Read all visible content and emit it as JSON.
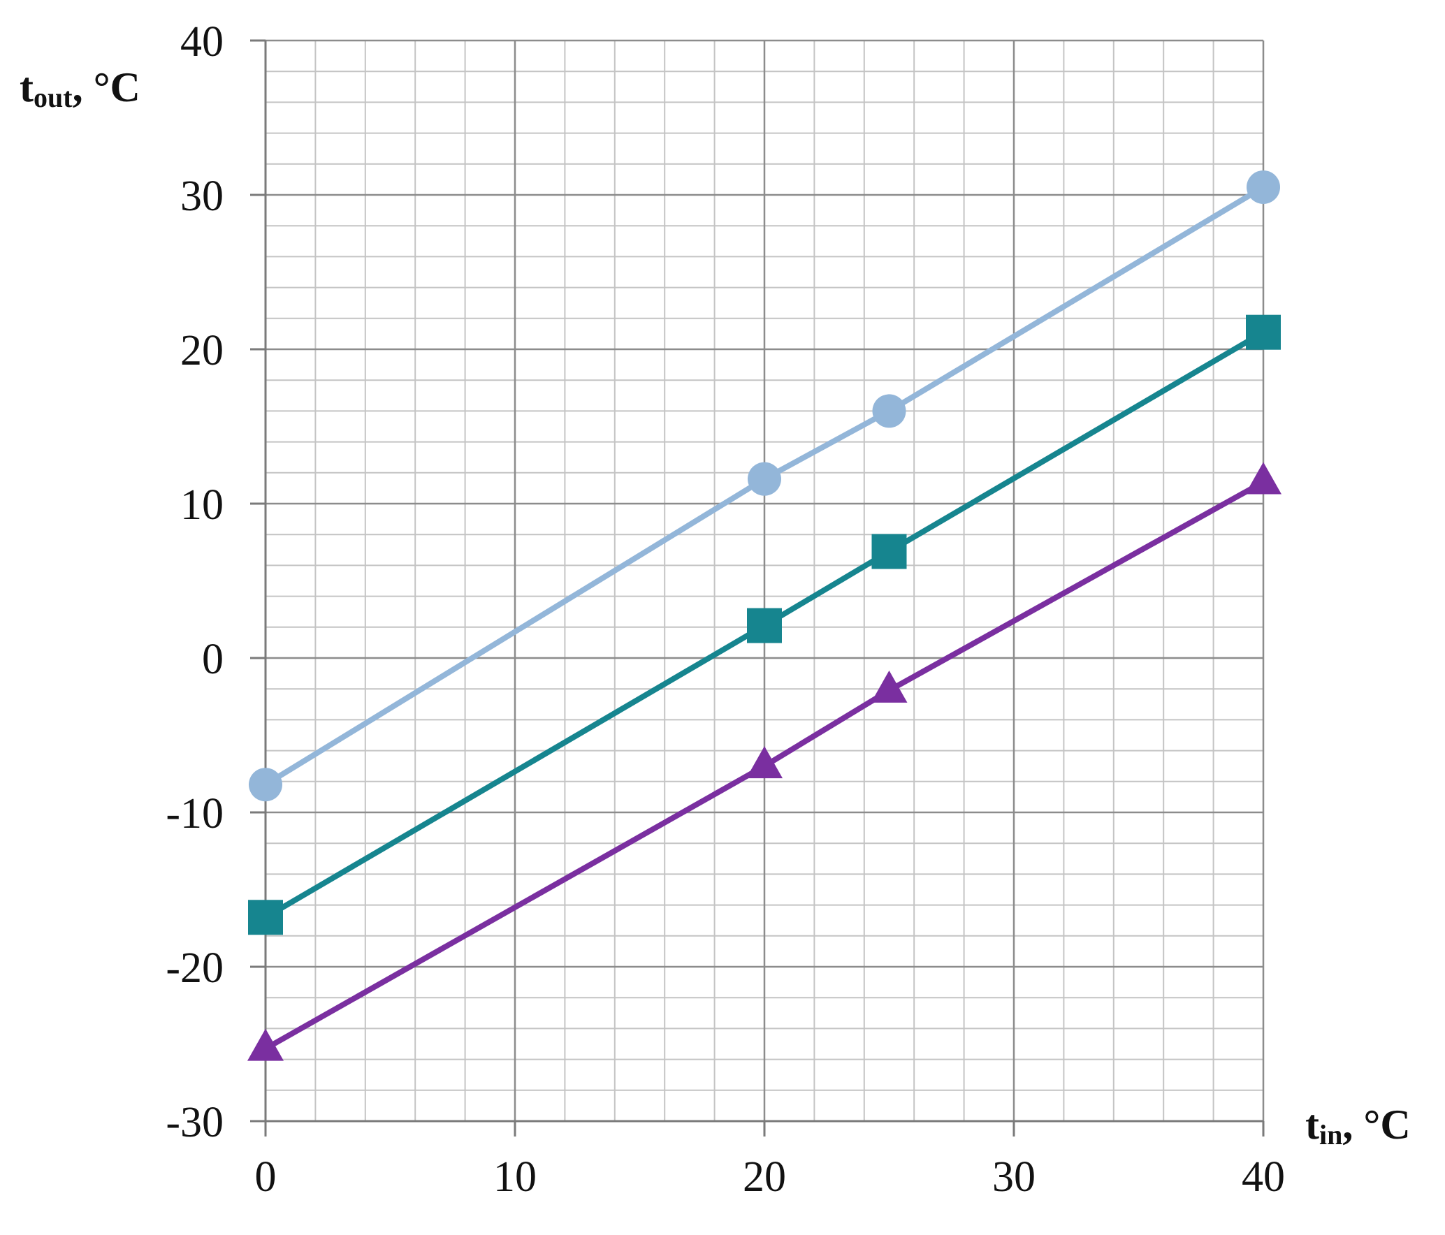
{
  "chart_data": {
    "type": "line",
    "xlabel": {
      "main": "t",
      "sub": "in",
      "unit": ", °C"
    },
    "ylabel": {
      "main": "t",
      "sub": "out",
      "unit": ", °C"
    },
    "xlim": [
      0,
      40
    ],
    "ylim": [
      -30,
      40
    ],
    "x_ticks": [
      0,
      10,
      20,
      30,
      40
    ],
    "y_ticks": [
      -30,
      -20,
      -10,
      0,
      10,
      20,
      30,
      40
    ],
    "x_tick_labels": [
      "0",
      "10",
      "20",
      "30",
      "40"
    ],
    "y_tick_labels": [
      "-30",
      "-20",
      "-10",
      "0",
      "10",
      "20",
      "30",
      "40"
    ],
    "grid": true,
    "minor_grid_step_x": 2,
    "minor_grid_step_y": 2,
    "series": [
      {
        "marker": "circle",
        "color": "#93b6d9",
        "x": [
          0,
          20,
          25,
          40
        ],
        "y": [
          -8.2,
          11.6,
          16.0,
          30.5
        ]
      },
      {
        "marker": "square",
        "color": "#16858f",
        "x": [
          0,
          20,
          25,
          40
        ],
        "y": [
          -16.8,
          2.1,
          6.9,
          21.1
        ]
      },
      {
        "marker": "triangle",
        "color": "#7a2fa0",
        "x": [
          0,
          20,
          25,
          40
        ],
        "y": [
          -25.3,
          -7.0,
          -2.1,
          11.4
        ]
      }
    ]
  }
}
